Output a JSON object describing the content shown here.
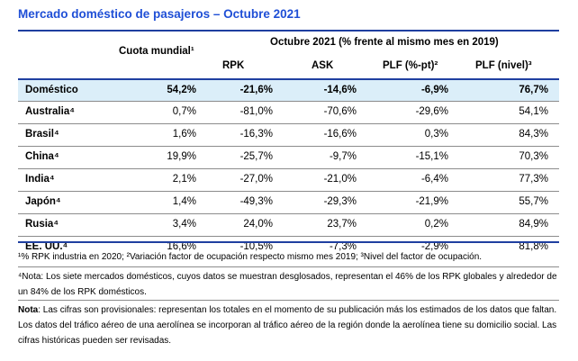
{
  "title": "Mercado doméstico de pasajeros – Octubre 2021",
  "header": {
    "cuota": "Cuota mundial¹",
    "group": "Octubre 2021 (% frente al mismo mes en 2019)",
    "cols": [
      "RPK",
      "ASK",
      "PLF (%-pt)²",
      "PLF (nivel)³"
    ]
  },
  "rows": [
    {
      "name": "Doméstico",
      "cuota": "54,2%",
      "rpk": "-21,6%",
      "ask": "-14,6%",
      "plf_pt": "-6,9%",
      "plf_nivel": "76,7%"
    },
    {
      "name": "Australia⁴",
      "cuota": "0,7%",
      "rpk": "-81,0%",
      "ask": "-70,6%",
      "plf_pt": "-29,6%",
      "plf_nivel": "54,1%"
    },
    {
      "name": "Brasil⁴",
      "cuota": "1,6%",
      "rpk": "-16,3%",
      "ask": "-16,6%",
      "plf_pt": "0,3%",
      "plf_nivel": "84,3%"
    },
    {
      "name": "China⁴",
      "cuota": "19,9%",
      "rpk": "-25,7%",
      "ask": "-9,7%",
      "plf_pt": "-15,1%",
      "plf_nivel": "70,3%"
    },
    {
      "name": "India⁴",
      "cuota": "2,1%",
      "rpk": "-27,0%",
      "ask": "-21,0%",
      "plf_pt": "-6,4%",
      "plf_nivel": "77,3%"
    },
    {
      "name": "Japón⁴",
      "cuota": "1,4%",
      "rpk": "-49,3%",
      "ask": "-29,3%",
      "plf_pt": "-21,9%",
      "plf_nivel": "55,7%"
    },
    {
      "name": "Rusia⁴",
      "cuota": "3,4%",
      "rpk": "24,0%",
      "ask": "23,7%",
      "plf_pt": "0,2%",
      "plf_nivel": "84,9%"
    },
    {
      "name": "EE. UU.⁴",
      "cuota": "16,6%",
      "rpk": "-10,5%",
      "ask": "-7,3%",
      "plf_pt": "-2,9%",
      "plf_nivel": "81,8%"
    }
  ],
  "notes": {
    "n1": "¹% RPK industria en 2020; ²Variación factor de ocupación respecto mismo mes 2019; ³Nivel del factor de ocupación.",
    "n2": "⁴Nota: Los siete mercados domésticos, cuyos datos se muestran desglosados, representan el 46% de los RPK globales y alrededor de un 84% de los RPK domésticos.",
    "n3_label": "Nota",
    "n3": ": Las cifras son provisionales: representan los totales en el momento de su publicación más los estimados de los datos que faltan. Los datos del tráfico aéreo de una aerolínea se incorporan al tráfico aéreo de la región donde la aerolínea tiene su domicilio social. Las cifras históricas pueden ser revisadas."
  }
}
